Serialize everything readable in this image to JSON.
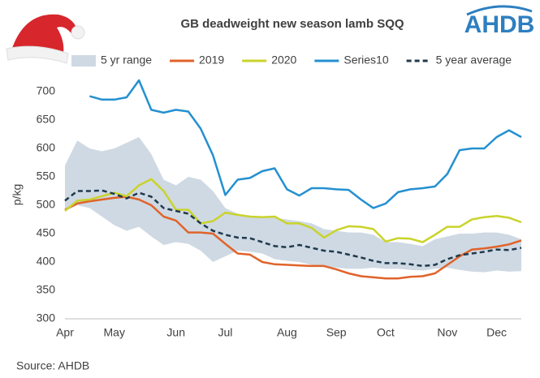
{
  "chart_data": {
    "type": "line",
    "title": "GB deadweight new season lamb SQQ",
    "logo": "AHDB",
    "source": "Source: AHDB",
    "ylabel": "p/kg",
    "categories": [
      "Apr",
      null,
      null,
      null,
      "May",
      null,
      null,
      null,
      null,
      "Jun",
      null,
      null,
      null,
      "Jul",
      null,
      null,
      null,
      null,
      "Aug",
      null,
      null,
      null,
      "Sep",
      null,
      null,
      null,
      "Oct",
      null,
      null,
      null,
      null,
      "Nov",
      null,
      null,
      null,
      "Dec",
      null,
      null
    ],
    "ylim": [
      300,
      700
    ],
    "yticks": [
      300,
      350,
      400,
      450,
      500,
      550,
      600,
      650,
      700
    ],
    "grid": false,
    "legend": "top",
    "series": [
      {
        "name": "5 yr range",
        "color": "#cfd9e3",
        "upper": [
          570,
          614,
          600,
          595,
          600,
          610,
          620,
          590,
          545,
          535,
          550,
          545,
          525,
          495,
          485,
          480,
          478,
          478,
          475,
          472,
          468,
          458,
          455,
          452,
          452,
          448,
          435,
          435,
          432,
          428,
          440,
          445,
          450,
          450,
          452,
          452,
          448,
          440
        ],
        "lower": [
          490,
          500,
          495,
          480,
          465,
          455,
          462,
          445,
          430,
          435,
          432,
          420,
          400,
          410,
          420,
          418,
          415,
          405,
          402,
          400,
          395,
          392,
          390,
          388,
          388,
          390,
          388,
          388,
          386,
          385,
          388,
          390,
          386,
          383,
          382,
          385,
          383,
          384
        ]
      },
      {
        "name": "2019",
        "color": "#e0632a",
        "values": [
          492,
          503,
          507,
          510,
          513,
          515,
          510,
          500,
          480,
          473,
          452,
          452,
          450,
          432,
          415,
          413,
          400,
          396,
          395,
          394,
          393,
          393,
          387,
          380,
          375,
          373,
          371,
          371,
          374,
          375,
          380,
          395,
          410,
          422,
          424,
          427,
          431,
          438
        ]
      },
      {
        "name": "2020",
        "color": "#c9d32b",
        "values": [
          490,
          508,
          510,
          516,
          522,
          516,
          535,
          546,
          525,
          492,
          492,
          468,
          472,
          487,
          483,
          480,
          479,
          480,
          468,
          468,
          460,
          443,
          456,
          463,
          462,
          458,
          436,
          442,
          441,
          435,
          448,
          462,
          462,
          475,
          479,
          481,
          478,
          470
        ]
      },
      {
        "name": "Series10",
        "color": "#2490d0",
        "values": [
          null,
          null,
          692,
          686,
          686,
          690,
          720,
          668,
          663,
          668,
          665,
          635,
          588,
          518,
          545,
          548,
          560,
          565,
          528,
          517,
          530,
          530,
          528,
          527,
          510,
          495,
          503,
          523,
          528,
          530,
          533,
          555,
          597,
          600,
          600,
          620,
          632,
          620
        ]
      },
      {
        "name": "5 year average",
        "color": "#1f3a4d",
        "dashed": true,
        "values": [
          508,
          525,
          525,
          526,
          520,
          512,
          522,
          515,
          495,
          490,
          485,
          468,
          455,
          448,
          443,
          442,
          435,
          428,
          426,
          430,
          425,
          420,
          418,
          413,
          408,
          402,
          398,
          398,
          396,
          393,
          395,
          405,
          412,
          415,
          418,
          422,
          421,
          425
        ]
      }
    ]
  }
}
